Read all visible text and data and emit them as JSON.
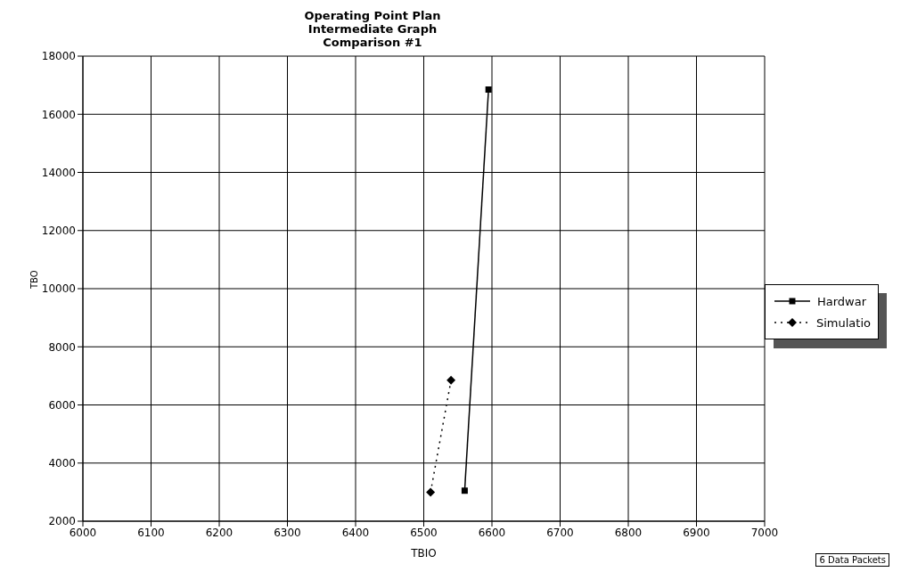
{
  "chart_data": {
    "type": "line",
    "title": "Operating Point Plan\nIntermediate Graph\nComparison #1",
    "xlabel": "TBIO",
    "ylabel": "TBO",
    "series": [
      {
        "name": "Hardwar",
        "color": "#000000",
        "x": [
          6560,
          6595
        ],
        "values": [
          3050,
          16850
        ],
        "marker": "square",
        "line_style": "solid"
      },
      {
        "name": "Simulatio",
        "color": "#000000",
        "x": [
          6510,
          6540
        ],
        "values": [
          3000,
          6850
        ],
        "marker": "diamond",
        "line_style": "dotted"
      }
    ],
    "xlim": [
      6000,
      7000
    ],
    "xticks": [
      6000,
      6100,
      6200,
      6300,
      6400,
      6500,
      6600,
      6700,
      6800,
      6900,
      7000
    ],
    "ylim": [
      2000,
      18000
    ],
    "yticks": [
      2000,
      4000,
      6000,
      8000,
      10000,
      12000,
      14000,
      16000,
      18000
    ],
    "grid": true,
    "legend": "right",
    "annotations": [
      "6 Data Packets"
    ]
  }
}
